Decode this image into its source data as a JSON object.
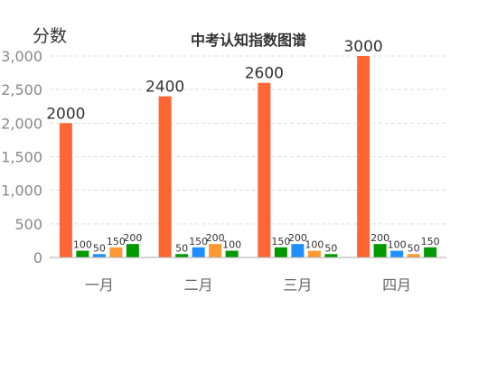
{
  "chart_data": {
    "type": "bar",
    "title": "中考认知指数图谱",
    "ylabel": "分数",
    "xlabel": "",
    "categories": [
      "一月",
      "二月",
      "三月",
      "四月"
    ],
    "ylim": [
      0,
      3000
    ],
    "yticks": [
      0,
      500,
      1000,
      1500,
      2000,
      2500,
      3000
    ],
    "ytick_labels": [
      "0",
      "500",
      "1,000",
      "1,500",
      "2,000",
      "2,500",
      "3,000"
    ],
    "grid": true,
    "legend": false,
    "series": [
      {
        "values": [
          2000,
          2400,
          2600,
          3000
        ],
        "color": "#ff6633",
        "label_size": "large"
      },
      {
        "values": [
          100,
          50,
          150,
          200
        ],
        "color": "#009900",
        "label_size": "small"
      },
      {
        "values": [
          50,
          150,
          200,
          100
        ],
        "color": "#1f8fff",
        "label_size": "small"
      },
      {
        "values": [
          150,
          200,
          100,
          50
        ],
        "color": "#ff9933",
        "label_size": "small"
      },
      {
        "values": [
          200,
          100,
          50,
          150
        ],
        "color": "#009900",
        "label_size": "small"
      }
    ]
  }
}
